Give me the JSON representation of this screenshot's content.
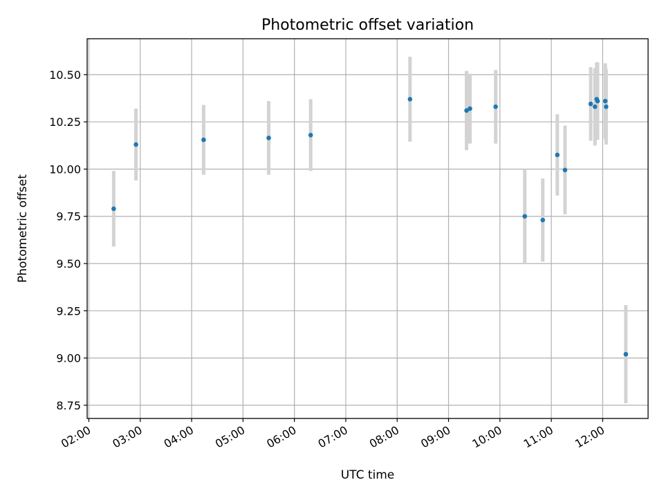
{
  "chart_data": {
    "type": "scatter",
    "title": "Photometric offset variation",
    "xlabel": "UTC time",
    "ylabel": "Photometric offset",
    "xlim": [
      "01:58",
      "12:53"
    ],
    "ylim": [
      8.68,
      10.69
    ],
    "x_ticks": [
      "02:00",
      "03:00",
      "04:00",
      "05:00",
      "06:00",
      "07:00",
      "08:00",
      "09:00",
      "10:00",
      "11:00",
      "12:00"
    ],
    "y_ticks": [
      8.75,
      9.0,
      9.25,
      9.5,
      9.75,
      10.0,
      10.25,
      10.5
    ],
    "y_tick_labels": [
      "8.75",
      "9.00",
      "9.25",
      "9.50",
      "9.75",
      "10.00",
      "10.25",
      "10.50"
    ],
    "grid": true,
    "colors": {
      "marker": "#1f77b4",
      "errorbar": "#d3d3d3",
      "grid": "#b0b0b0"
    },
    "points": [
      {
        "x": "02:29",
        "y": 9.79,
        "err": 0.2
      },
      {
        "x": "02:55",
        "y": 10.13,
        "err": 0.19
      },
      {
        "x": "04:14",
        "y": 10.155,
        "err": 0.185
      },
      {
        "x": "05:30",
        "y": 10.165,
        "err": 0.195
      },
      {
        "x": "06:19",
        "y": 10.18,
        "err": 0.19
      },
      {
        "x": "08:15",
        "y": 10.37,
        "err": 0.225
      },
      {
        "x": "09:21",
        "y": 10.31,
        "err": 0.21
      },
      {
        "x": "09:25",
        "y": 10.32,
        "err": 0.185
      },
      {
        "x": "09:55",
        "y": 10.33,
        "err": 0.195
      },
      {
        "x": "10:29",
        "y": 9.75,
        "err": 0.25
      },
      {
        "x": "10:50",
        "y": 9.73,
        "err": 0.22
      },
      {
        "x": "11:07",
        "y": 10.075,
        "err": 0.215
      },
      {
        "x": "11:16",
        "y": 9.995,
        "err": 0.235
      },
      {
        "x": "11:46",
        "y": 10.345,
        "err": 0.195
      },
      {
        "x": "11:51",
        "y": 10.33,
        "err": 0.205
      },
      {
        "x": "11:53",
        "y": 10.37,
        "err": 0.195
      },
      {
        "x": "11:54",
        "y": 10.36,
        "err": 0.205
      },
      {
        "x": "12:03",
        "y": 10.36,
        "err": 0.2
      },
      {
        "x": "12:04",
        "y": 10.33,
        "err": 0.2
      },
      {
        "x": "12:27",
        "y": 9.02,
        "err": 0.26
      }
    ]
  }
}
